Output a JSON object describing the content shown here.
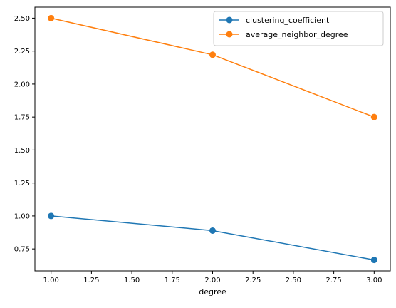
{
  "chart_data": {
    "type": "line",
    "title": "",
    "xlabel": "degree",
    "ylabel": "",
    "x": [
      1.0,
      2.0,
      3.0
    ],
    "xticks": [
      1.0,
      1.25,
      1.5,
      1.75,
      2.0,
      2.25,
      2.5,
      2.75,
      3.0
    ],
    "xtick_labels": [
      "1.00",
      "1.25",
      "1.50",
      "1.75",
      "2.00",
      "2.25",
      "2.50",
      "2.75",
      "3.00"
    ],
    "yticks": [
      0.75,
      1.0,
      1.25,
      1.5,
      1.75,
      2.0,
      2.25,
      2.5
    ],
    "ytick_labels": [
      "0.75",
      "1.00",
      "1.25",
      "1.50",
      "1.75",
      "2.00",
      "2.25",
      "2.50"
    ],
    "xlim": [
      0.9,
      3.1
    ],
    "ylim": [
      0.5833,
      2.5833
    ],
    "grid": false,
    "legend_position": "top-right",
    "series": [
      {
        "name": "clustering_coefficient",
        "values": [
          1.0,
          0.8889,
          0.6667
        ],
        "color": "#1f77b4"
      },
      {
        "name": "average_neighbor_degree",
        "values": [
          2.5,
          2.2222,
          1.75
        ],
        "color": "#ff7f0e"
      }
    ]
  }
}
